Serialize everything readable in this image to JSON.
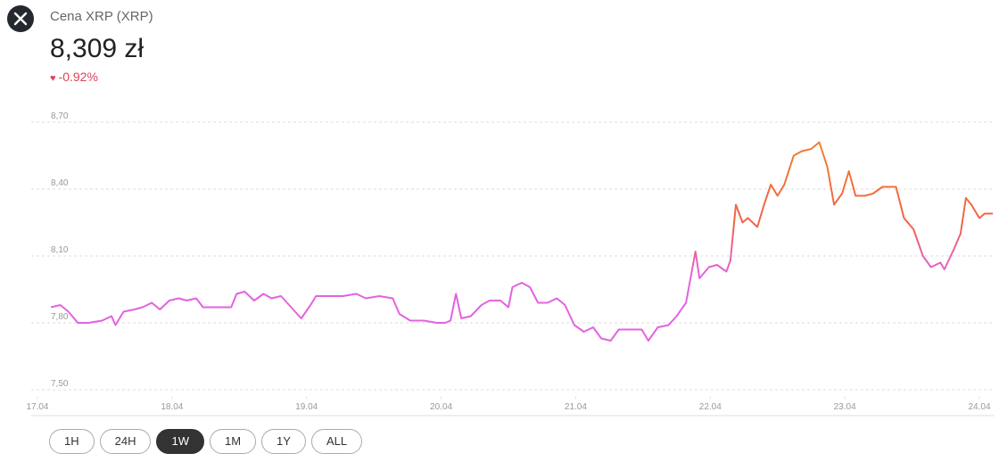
{
  "header": {
    "title": "Cena XRP (XRP)",
    "price": "8,309 zł",
    "change": "-0.92%"
  },
  "chart_data": {
    "type": "line",
    "x": [
      17.1,
      17.17,
      17.23,
      17.3,
      17.38,
      17.48,
      17.55,
      17.58,
      17.64,
      17.72,
      17.78,
      17.85,
      17.91,
      17.98,
      18.05,
      18.11,
      18.18,
      18.23,
      18.34,
      18.44,
      18.48,
      18.54,
      18.61,
      18.68,
      18.74,
      18.81,
      18.87,
      18.96,
      19.03,
      19.07,
      19.17,
      19.27,
      19.37,
      19.44,
      19.54,
      19.64,
      19.69,
      19.77,
      19.87,
      19.97,
      20.03,
      20.07,
      20.11,
      20.15,
      20.22,
      20.3,
      20.36,
      20.44,
      20.5,
      20.53,
      20.6,
      20.66,
      20.72,
      20.79,
      20.86,
      20.92,
      20.99,
      21.06,
      21.13,
      21.19,
      21.26,
      21.32,
      21.42,
      21.49,
      21.54,
      21.61,
      21.69,
      21.75,
      21.82,
      21.89,
      21.92,
      21.99,
      22.05,
      22.12,
      22.15,
      22.19,
      22.24,
      22.28,
      22.35,
      22.4,
      22.45,
      22.5,
      22.55,
      22.62,
      22.68,
      22.75,
      22.81,
      22.87,
      22.92,
      22.98,
      23.03,
      23.08,
      23.15,
      23.21,
      23.28,
      23.38,
      23.44,
      23.51,
      23.58,
      23.64,
      23.71,
      23.74,
      23.81,
      23.86,
      23.9,
      23.94,
      24.0,
      24.04,
      24.1
    ],
    "values": [
      7.87,
      7.88,
      7.85,
      7.8,
      7.8,
      7.81,
      7.83,
      7.79,
      7.85,
      7.86,
      7.87,
      7.89,
      7.86,
      7.9,
      7.91,
      7.9,
      7.91,
      7.87,
      7.87,
      7.87,
      7.93,
      7.94,
      7.9,
      7.93,
      7.91,
      7.92,
      7.88,
      7.82,
      7.88,
      7.92,
      7.92,
      7.92,
      7.93,
      7.91,
      7.92,
      7.91,
      7.84,
      7.81,
      7.81,
      7.8,
      7.8,
      7.81,
      7.93,
      7.82,
      7.83,
      7.88,
      7.9,
      7.9,
      7.87,
      7.96,
      7.98,
      7.96,
      7.89,
      7.89,
      7.91,
      7.88,
      7.79,
      7.76,
      7.78,
      7.73,
      7.72,
      7.77,
      7.77,
      7.77,
      7.72,
      7.78,
      7.79,
      7.83,
      7.89,
      8.12,
      8.0,
      8.05,
      8.06,
      8.03,
      8.08,
      8.33,
      8.25,
      8.27,
      8.23,
      8.33,
      8.42,
      8.37,
      8.42,
      8.55,
      8.57,
      8.58,
      8.61,
      8.5,
      8.33,
      8.38,
      8.48,
      8.37,
      8.37,
      8.38,
      8.41,
      8.41,
      8.27,
      8.22,
      8.1,
      8.05,
      8.07,
      8.04,
      8.13,
      8.2,
      8.36,
      8.33,
      8.27,
      8.29,
      8.29
    ],
    "colors": [
      "#f28a1e",
      "#f06448",
      "#e462e0"
    ],
    "xlim": [
      16.95,
      24.1
    ],
    "xticks": [
      {
        "value": 17,
        "label": "17.04"
      },
      {
        "value": 18,
        "label": "18.04"
      },
      {
        "value": 19,
        "label": "19.04"
      },
      {
        "value": 20,
        "label": "20.04"
      },
      {
        "value": 21,
        "label": "21.04"
      },
      {
        "value": 22,
        "label": "22.04"
      },
      {
        "value": 23,
        "label": "23.04"
      },
      {
        "value": 24,
        "label": "24.04"
      }
    ],
    "ylim": [
      7.47,
      8.77
    ],
    "yticks": [
      {
        "value": 7.5,
        "label": "7,50"
      },
      {
        "value": 7.8,
        "label": "7,80"
      },
      {
        "value": 8.1,
        "label": "8,10"
      },
      {
        "value": 8.4,
        "label": "8,40"
      },
      {
        "value": 8.7,
        "label": "8,70"
      }
    ],
    "grid": true
  },
  "ranges": {
    "items": [
      "1H",
      "24H",
      "1W",
      "1M",
      "1Y",
      "ALL"
    ],
    "selected": 2
  }
}
